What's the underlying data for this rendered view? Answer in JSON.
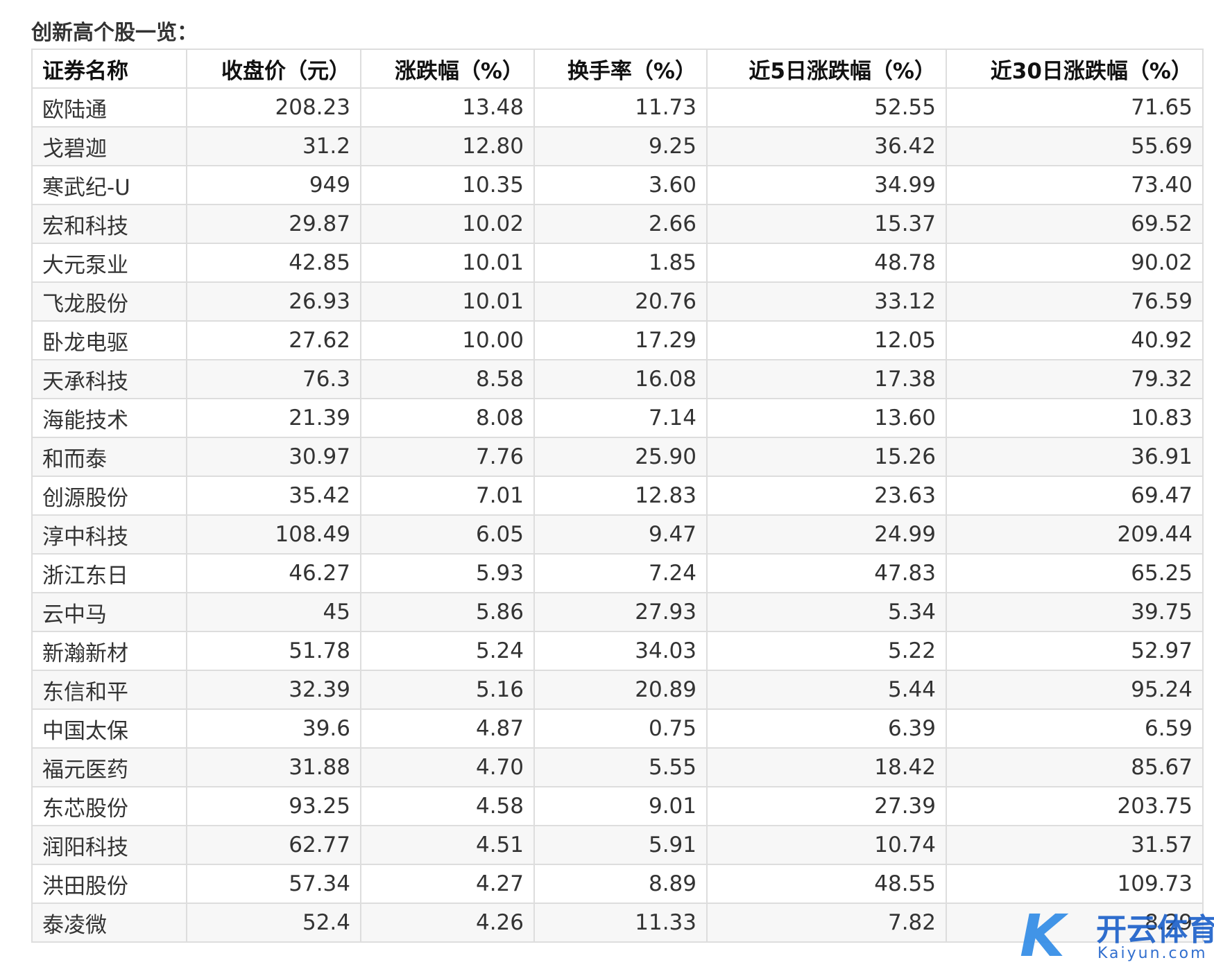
{
  "title": "创新高个股一览：",
  "table": {
    "header": [
      "证券名称",
      "收盘价（元）",
      "涨跌幅（%）",
      "换手率（%）",
      "近5日涨跌幅（%）",
      "近30日涨跌幅（%）"
    ],
    "rows": [
      [
        "欧陆通",
        "208.23",
        "13.48",
        "11.73",
        "52.55",
        "71.65"
      ],
      [
        "戈碧迦",
        "31.2",
        "12.80",
        "9.25",
        "36.42",
        "55.69"
      ],
      [
        "寒武纪-U",
        "949",
        "10.35",
        "3.60",
        "34.99",
        "73.40"
      ],
      [
        "宏和科技",
        "29.87",
        "10.02",
        "2.66",
        "15.37",
        "69.52"
      ],
      [
        "大元泵业",
        "42.85",
        "10.01",
        "1.85",
        "48.78",
        "90.02"
      ],
      [
        "飞龙股份",
        "26.93",
        "10.01",
        "20.76",
        "33.12",
        "76.59"
      ],
      [
        "卧龙电驱",
        "27.62",
        "10.00",
        "17.29",
        "12.05",
        "40.92"
      ],
      [
        "天承科技",
        "76.3",
        "8.58",
        "16.08",
        "17.38",
        "79.32"
      ],
      [
        "海能技术",
        "21.39",
        "8.08",
        "7.14",
        "13.60",
        "10.83"
      ],
      [
        "和而泰",
        "30.97",
        "7.76",
        "25.90",
        "15.26",
        "36.91"
      ],
      [
        "创源股份",
        "35.42",
        "7.01",
        "12.83",
        "23.63",
        "69.47"
      ],
      [
        "淳中科技",
        "108.49",
        "6.05",
        "9.47",
        "24.99",
        "209.44"
      ],
      [
        "浙江东日",
        "46.27",
        "5.93",
        "7.24",
        "47.83",
        "65.25"
      ],
      [
        "云中马",
        "45",
        "5.86",
        "27.93",
        "5.34",
        "39.75"
      ],
      [
        "新瀚新材",
        "51.78",
        "5.24",
        "34.03",
        "5.22",
        "52.97"
      ],
      [
        "东信和平",
        "32.39",
        "5.16",
        "20.89",
        "5.44",
        "95.24"
      ],
      [
        "中国太保",
        "39.6",
        "4.87",
        "0.75",
        "6.39",
        "6.59"
      ],
      [
        "福元医药",
        "31.88",
        "4.70",
        "5.55",
        "18.42",
        "85.67"
      ],
      [
        "东芯股份",
        "93.25",
        "4.58",
        "9.01",
        "27.39",
        "203.75"
      ],
      [
        "润阳科技",
        "62.77",
        "4.51",
        "5.91",
        "10.74",
        "31.57"
      ],
      [
        "洪田股份",
        "57.34",
        "4.27",
        "8.89",
        "48.55",
        "109.73"
      ],
      [
        "泰凌微",
        "52.4",
        "4.26",
        "11.33",
        "7.82",
        "8.29"
      ]
    ]
  },
  "watermark": {
    "brand": "开云体育",
    "url": "Kaiyun.com"
  }
}
